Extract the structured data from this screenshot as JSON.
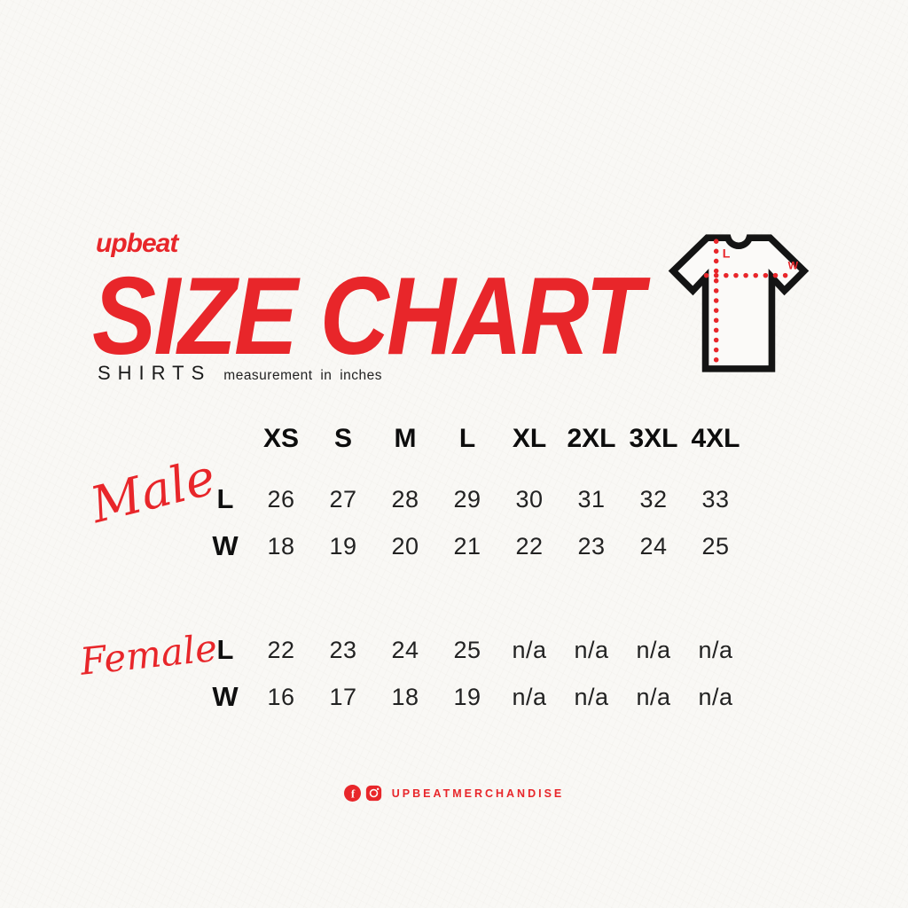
{
  "brand": {
    "logo": "upbeat"
  },
  "header": {
    "title": "SIZE CHART",
    "subtitle": "SHIRTS",
    "subtitle_note": "measurement in inches"
  },
  "tshirt_diagram": {
    "length_label": "L",
    "width_label": "W"
  },
  "chart_data": {
    "type": "table",
    "title": "SIZE CHART",
    "subtitle": "SHIRTS",
    "unit": "inches",
    "columns": [
      "XS",
      "S",
      "M",
      "L",
      "XL",
      "2XL",
      "3XL",
      "4XL"
    ],
    "sections": [
      {
        "name": "Male",
        "rows": [
          {
            "label": "L",
            "values": [
              "26",
              "27",
              "28",
              "29",
              "30",
              "31",
              "32",
              "33"
            ]
          },
          {
            "label": "W",
            "values": [
              "18",
              "19",
              "20",
              "21",
              "22",
              "23",
              "24",
              "25"
            ]
          }
        ]
      },
      {
        "name": "Female",
        "rows": [
          {
            "label": "L",
            "values": [
              "22",
              "23",
              "24",
              "25",
              "n/a",
              "n/a",
              "n/a",
              "n/a"
            ]
          },
          {
            "label": "W",
            "values": [
              "16",
              "17",
              "18",
              "19",
              "n/a",
              "n/a",
              "n/a",
              "n/a"
            ]
          }
        ]
      }
    ]
  },
  "footer": {
    "handle": "UPBEATMERCHANDISE",
    "icons": [
      "facebook-icon",
      "instagram-icon"
    ]
  },
  "colors": {
    "accent_red": "#e8262a",
    "ink_black": "#141414",
    "paper": "#f9f8f5"
  }
}
